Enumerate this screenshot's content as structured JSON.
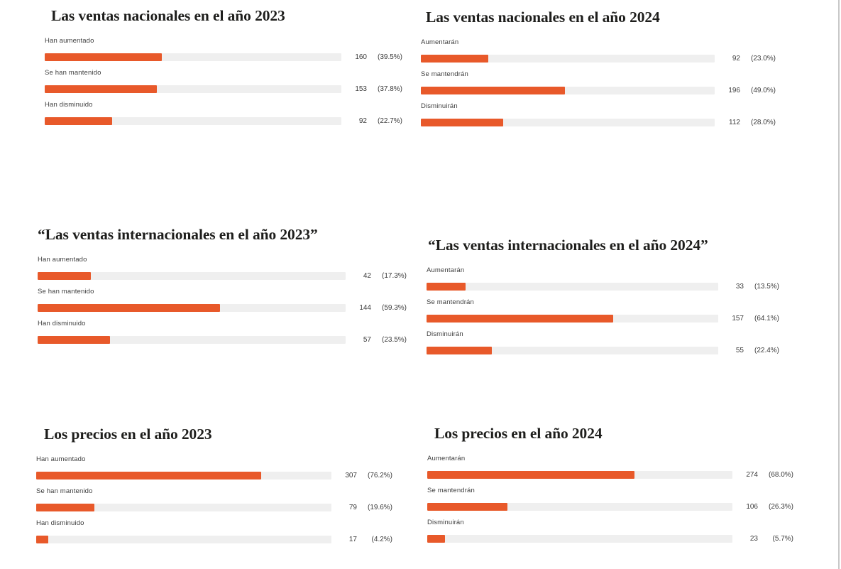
{
  "colors": {
    "bar_fill": "#E8592A",
    "bar_track": "#EFEFEF",
    "title_text": "#1E1E1C",
    "body_text": "#3E3E3E",
    "page_background": "#FFFFFF",
    "right_divider": "#C8C8C8"
  },
  "chart_data": [
    {
      "type": "bar",
      "orientation": "horizontal",
      "title": "Las ventas nacionales en el año 2023",
      "categories": [
        "Han aumentado",
        "Se han mantenido",
        "Han disminuido"
      ],
      "values": [
        160,
        153,
        92
      ],
      "percents": [
        39.5,
        37.8,
        22.7
      ],
      "percent_labels": [
        "(39.5%)",
        "(37.8%)",
        "(22.7%)"
      ],
      "xlim": [
        0,
        100
      ],
      "legend": "none",
      "grid": "off"
    },
    {
      "type": "bar",
      "orientation": "horizontal",
      "title": "Las ventas nacionales en el año 2024",
      "categories": [
        "Aumentarán",
        "Se mantendrán",
        "Disminuirán"
      ],
      "values": [
        92,
        196,
        112
      ],
      "percents": [
        23.0,
        49.0,
        28.0
      ],
      "percent_labels": [
        "(23.0%)",
        "(49.0%)",
        "(28.0%)"
      ],
      "xlim": [
        0,
        100
      ],
      "legend": "none",
      "grid": "off"
    },
    {
      "type": "bar",
      "orientation": "horizontal",
      "title": "“Las ventas internacionales en el año 2023”",
      "categories": [
        "Han aumentado",
        "Se han mantenido",
        "Han disminuido"
      ],
      "values": [
        42,
        144,
        57
      ],
      "percents": [
        17.3,
        59.3,
        23.5
      ],
      "percent_labels": [
        "(17.3%)",
        "(59.3%)",
        "(23.5%)"
      ],
      "xlim": [
        0,
        100
      ],
      "legend": "none",
      "grid": "off"
    },
    {
      "type": "bar",
      "orientation": "horizontal",
      "title": "“Las ventas internacionales en el año 2024”",
      "categories": [
        "Aumentarán",
        "Se mantendrán",
        "Disminuirán"
      ],
      "values": [
        33,
        157,
        55
      ],
      "percents": [
        13.5,
        64.1,
        22.4
      ],
      "percent_labels": [
        "(13.5%)",
        "(64.1%)",
        "(22.4%)"
      ],
      "xlim": [
        0,
        100
      ],
      "legend": "none",
      "grid": "off"
    },
    {
      "type": "bar",
      "orientation": "horizontal",
      "title": "Los precios en el año 2023",
      "categories": [
        "Han aumentado",
        "Se han mantenido",
        "Han disminuido"
      ],
      "values": [
        307,
        79,
        17
      ],
      "percents": [
        76.2,
        19.6,
        4.2
      ],
      "percent_labels": [
        "(76.2%)",
        "(19.6%)",
        "(4.2%)"
      ],
      "xlim": [
        0,
        100
      ],
      "legend": "none",
      "grid": "off"
    },
    {
      "type": "bar",
      "orientation": "horizontal",
      "title": "Los precios en el año 2024",
      "categories": [
        "Aumentarán",
        "Se mantendrán",
        "Disminuirán"
      ],
      "values": [
        274,
        106,
        23
      ],
      "percents": [
        68.0,
        26.3,
        5.7
      ],
      "percent_labels": [
        "(68.0%)",
        "(26.3%)",
        "(5.7%)"
      ],
      "xlim": [
        0,
        100
      ],
      "legend": "none",
      "grid": "off"
    }
  ]
}
